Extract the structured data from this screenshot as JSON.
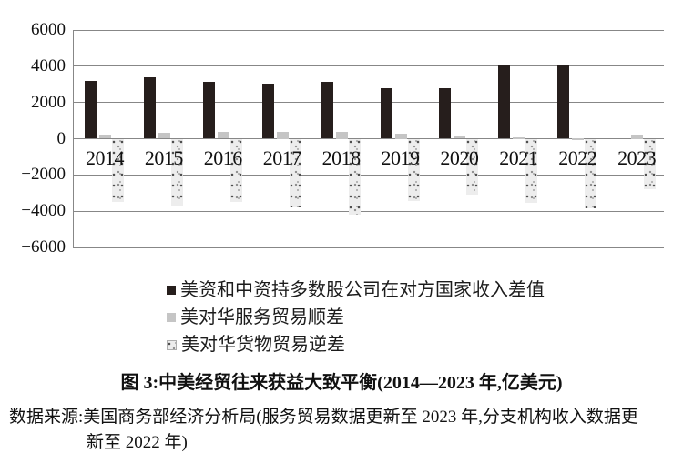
{
  "figure": {
    "caption": "图 3:中美经贸往来获益大致平衡(2014—2023 年,亿美元)",
    "source_line1": "数据来源:美国商务部经济分析局(服务贸易数据更新至 2023 年,分支机构收入数据更",
    "source_line2": "新至 2022 年)"
  },
  "chart_data": {
    "type": "bar",
    "title": "中美经贸往来获益大致平衡(2014—2023 年,亿美元)",
    "unit": "亿美元",
    "categories": [
      "2014",
      "2015",
      "2016",
      "2017",
      "2018",
      "2019",
      "2020",
      "2021",
      "2022",
      "2023"
    ],
    "series": [
      {
        "key": "income-diff",
        "name": "美资和中资持多数股公司在对方国家收入差值",
        "style": "solid-black",
        "color": "#261e1c",
        "values": [
          3200,
          3400,
          3150,
          3050,
          3150,
          2780,
          2800,
          4050,
          4100,
          null
        ]
      },
      {
        "key": "services-surplus",
        "name": "美对华服务贸易顺差",
        "style": "solid-gray",
        "color": "#c5c5c5",
        "values": [
          230,
          310,
          370,
          400,
          400,
          300,
          160,
          90,
          40,
          250
        ]
      },
      {
        "key": "goods-deficit",
        "name": "美对华货物贸易逆差",
        "style": "speckled-gray",
        "color": "#ededed",
        "values": [
          -3500,
          -3700,
          -3500,
          -3800,
          -4200,
          -3450,
          -3100,
          -3550,
          -3850,
          -2800
        ]
      }
    ],
    "ylim": [
      -6000,
      6000
    ],
    "ytick_interval": 2000,
    "yticks": [
      "6000",
      "4000",
      "2000",
      "0",
      "−2000",
      "−4000",
      "−6000"
    ],
    "grid": true,
    "legend_position": "below-chart"
  }
}
